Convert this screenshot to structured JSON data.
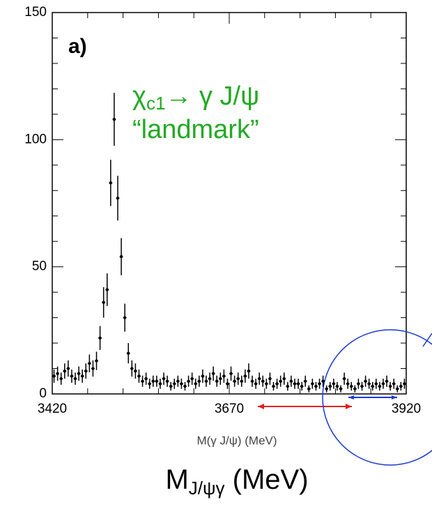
{
  "chart_data": {
    "type": "scatter",
    "panel_label": "a)",
    "annotation": {
      "symbol": "χ",
      "subscript": "c1",
      "rest": "→ γ J/ψ",
      "line2": "“landmark”",
      "color": "#22aa22"
    },
    "xlabel": "M(γ J/ψ) (MeV)",
    "big_label": {
      "main": "M",
      "subscript": "J/ψγ",
      "rest": " (MeV)"
    },
    "xlim": [
      3420,
      3920
    ],
    "ylim": [
      0,
      150
    ],
    "xticks": [
      3420,
      3670,
      3920
    ],
    "yticks": [
      0,
      50,
      100,
      150
    ],
    "xminorticks": [
      3470,
      3520,
      3570,
      3620,
      3720,
      3770,
      3820,
      3870
    ],
    "yminorticks": [
      10,
      20,
      30,
      40,
      60,
      70,
      80,
      90,
      110,
      120,
      130,
      140
    ],
    "series": [
      {
        "color": "#000000",
        "x": [
          3422.5,
          3427.5,
          3432.5,
          3437.5,
          3442.5,
          3447.5,
          3452.5,
          3457.5,
          3462.5,
          3467.5,
          3472.5,
          3477.5,
          3482.5,
          3487.5,
          3492.5,
          3497.5,
          3502.5,
          3507.5,
          3512.5,
          3517.5,
          3522.5,
          3527.5,
          3532.5,
          3537.5,
          3542.5,
          3547.5,
          3552.5,
          3557.5,
          3562.5,
          3567.5,
          3572.5,
          3577.5,
          3582.5,
          3587.5,
          3592.5,
          3597.5,
          3602.5,
          3607.5,
          3612.5,
          3617.5,
          3622.5,
          3627.5,
          3632.5,
          3637.5,
          3642.5,
          3647.5,
          3652.5,
          3657.5,
          3662.5,
          3667.5,
          3672.5,
          3677.5,
          3682.5,
          3687.5,
          3692.5,
          3697.5,
          3702.5,
          3707.5,
          3712.5,
          3717.5,
          3722.5,
          3727.5,
          3732.5,
          3737.5,
          3742.5,
          3747.5,
          3752.5,
          3757.5,
          3762.5,
          3767.5,
          3772.5,
          3777.5,
          3782.5,
          3787.5,
          3792.5,
          3797.5,
          3802.5,
          3807.5,
          3812.5,
          3817.5,
          3822.5,
          3827.5,
          3832.5,
          3837.5,
          3842.5,
          3847.5,
          3852.5,
          3857.5,
          3862.5,
          3867.5,
          3872.5,
          3877.5,
          3882.5,
          3887.5,
          3892.5,
          3897.5,
          3902.5,
          3907.5,
          3912.5,
          3917.5
        ],
        "values": [
          7,
          8,
          6,
          9,
          10,
          7,
          6,
          8,
          7,
          9,
          12,
          10,
          13,
          22,
          36,
          41,
          83,
          108,
          77,
          54,
          30,
          16,
          10,
          9,
          7,
          5,
          6,
          4,
          5,
          5,
          4,
          6,
          5,
          3,
          4,
          5,
          4,
          3,
          5,
          6,
          4,
          5,
          7,
          5,
          6,
          8,
          5,
          6,
          7,
          4,
          8,
          5,
          6,
          5,
          7,
          9,
          5,
          4,
          6,
          5,
          4,
          6,
          3,
          4,
          5,
          6,
          3,
          5,
          4,
          4,
          3,
          5,
          2,
          4,
          3,
          4,
          5,
          2,
          3,
          4,
          3,
          2,
          6,
          4,
          3,
          2,
          4,
          3,
          5,
          4,
          3,
          4,
          3,
          4,
          5,
          3,
          4,
          2,
          3,
          4
        ],
        "errors": [
          2.6,
          2.8,
          2.4,
          3,
          3.2,
          2.6,
          2.4,
          2.8,
          2.6,
          3,
          3.5,
          3.2,
          3.6,
          4.7,
          6,
          6.4,
          9.1,
          10.4,
          8.8,
          7.3,
          5.5,
          4,
          3.2,
          3,
          2.6,
          2.2,
          2.4,
          2,
          2.2,
          2.2,
          2,
          2.4,
          2.2,
          1.7,
          2,
          2.2,
          2,
          1.7,
          2.2,
          2.4,
          2,
          2.2,
          2.6,
          2.2,
          2.4,
          2.8,
          2.2,
          2.4,
          2.6,
          2,
          2.8,
          2.2,
          2.4,
          2.2,
          2.6,
          3,
          2.2,
          2,
          2.4,
          2.2,
          2,
          2.4,
          1.7,
          2,
          2.2,
          2.4,
          1.7,
          2.2,
          2,
          2,
          1.7,
          2.2,
          1.4,
          2,
          1.7,
          2,
          2.2,
          1.4,
          1.7,
          2,
          1.7,
          1.4,
          2.4,
          2,
          1.7,
          1.4,
          2,
          1.7,
          2.2,
          2,
          1.7,
          2,
          1.7,
          2,
          2.2,
          1.7,
          2,
          1.4,
          1.7,
          2
        ]
      }
    ]
  }
}
